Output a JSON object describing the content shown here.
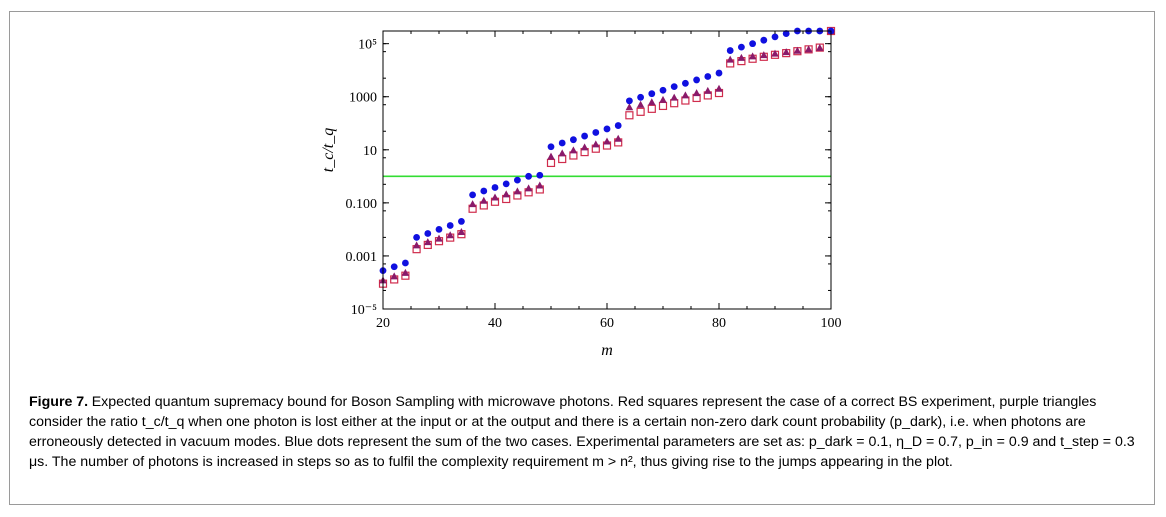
{
  "figure": {
    "label": "Figure 7.",
    "caption": "Expected quantum supremacy bound for Boson Sampling with microwave photons. Red squares represent the case of a correct BS experiment, purple triangles consider the ratio t_c/t_q when one photon is lost either at the input or at the output and there is a certain non-zero dark count probability (p_dark), i.e. when photons are erroneously detected in vacuum modes. Blue dots represent the sum of the two cases. Experimental parameters are set as: p_dark = 0.1, η_D = 0.7, p_in = 0.9 and t_step = 0.3 μs. The number of photons is increased in steps so as to fulfil the complexity requirement m > n², thus giving rise to the jumps appearing in the plot."
  },
  "chart_data": {
    "type": "scatter",
    "scale_y": "log",
    "xlabel": "m",
    "ylabel": "t_c/t_q",
    "xlim": [
      20,
      100
    ],
    "ylim": [
      1e-05,
      300000
    ],
    "x_ticks": [
      "20",
      "40",
      "60",
      "80",
      "100"
    ],
    "y_ticks": [
      "10⁻⁵",
      "0.001",
      "0.100",
      "10",
      "1000",
      "10⁵"
    ],
    "reference_line": {
      "y": 1,
      "color": "#33dd33"
    },
    "colors": {
      "blue": "#1010e0",
      "purple": "#8a1a6a",
      "red": "#d02c4c"
    },
    "series": [
      {
        "marker": "circle",
        "x": [
          20,
          22,
          24,
          26,
          28,
          30,
          32,
          34,
          36,
          38,
          40,
          42,
          44,
          46,
          48,
          50,
          52,
          54,
          56,
          58,
          60,
          62,
          64,
          66,
          68,
          70,
          72,
          74,
          76,
          78,
          80,
          82,
          84,
          86,
          88,
          90,
          92,
          94,
          96,
          98,
          100
        ],
        "y": [
          0.00028,
          0.00039,
          0.00054,
          0.005,
          0.007,
          0.01,
          0.014,
          0.02,
          0.2,
          0.28,
          0.38,
          0.52,
          0.72,
          1.0,
          1.1,
          13,
          18,
          24,
          33,
          45,
          61,
          82,
          700,
          950,
          1300,
          1750,
          2400,
          3200,
          4300,
          5800,
          7800,
          55000,
          74000,
          100000,
          135000,
          180000,
          240000,
          320000,
          430000,
          570000,
          1000000
        ]
      },
      {
        "marker": "triangle",
        "x": [
          20,
          22,
          24,
          26,
          28,
          30,
          32,
          34,
          36,
          38,
          40,
          42,
          44,
          46,
          48,
          50,
          52,
          54,
          56,
          58,
          60,
          62,
          64,
          66,
          68,
          70,
          72,
          74,
          76,
          78,
          80,
          82,
          84,
          86,
          88,
          90,
          92,
          94,
          96,
          98,
          100
        ],
        "y": [
          0.00012,
          0.00017,
          0.00023,
          0.0025,
          0.0033,
          0.0045,
          0.006,
          0.008,
          0.09,
          0.12,
          0.16,
          0.21,
          0.27,
          0.35,
          0.45,
          5.5,
          7.3,
          9.5,
          12.3,
          16,
          20.5,
          26,
          400,
          500,
          620,
          760,
          930,
          1130,
          1370,
          1660,
          2000,
          25000,
          29000,
          33000,
          37000,
          42000,
          48000,
          54000,
          61000,
          69000,
          1000000
        ]
      },
      {
        "marker": "square",
        "x": [
          20,
          22,
          24,
          26,
          28,
          30,
          32,
          34,
          36,
          38,
          40,
          42,
          44,
          46,
          48,
          50,
          52,
          54,
          56,
          58,
          60,
          62,
          64,
          66,
          68,
          70,
          72,
          74,
          76,
          78,
          80,
          82,
          84,
          86,
          88,
          90,
          92,
          94,
          96,
          98,
          100
        ],
        "y": [
          9e-05,
          0.00013,
          0.00018,
          0.0018,
          0.0026,
          0.0036,
          0.0049,
          0.0066,
          0.06,
          0.08,
          0.11,
          0.14,
          0.19,
          0.25,
          0.32,
          3.2,
          4.5,
          6.1,
          8.2,
          11,
          14.5,
          19,
          200,
          270,
          350,
          450,
          570,
          720,
          900,
          1120,
          1380,
          18000,
          22000,
          27000,
          32000,
          38000,
          44000,
          52000,
          61000,
          71000,
          800000
        ]
      }
    ]
  }
}
